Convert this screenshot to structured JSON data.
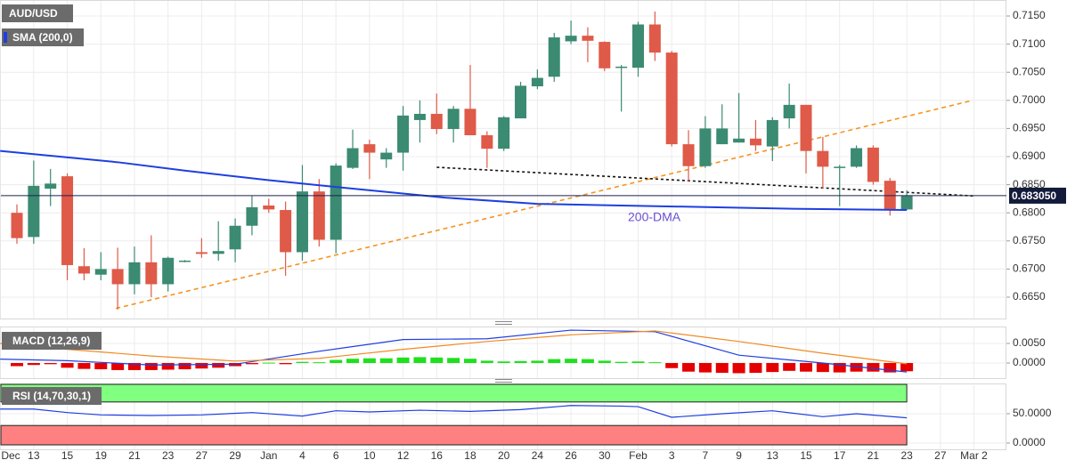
{
  "chart_data": [
    {
      "type": "candlestick",
      "title": "AUD/USD",
      "xlim": [
        -1.008,
        58.935
      ],
      "xticks": [
        {
          "value": -1,
          "label": "Dec"
        },
        {
          "value": 1,
          "label": "13"
        },
        {
          "value": 3,
          "label": "15"
        },
        {
          "value": 5,
          "label": "19"
        },
        {
          "value": 7,
          "label": "21"
        },
        {
          "value": 9,
          "label": "23"
        },
        {
          "value": 11,
          "label": "27"
        },
        {
          "value": 13,
          "label": "29"
        },
        {
          "value": 15,
          "label": "Jan"
        },
        {
          "value": 17,
          "label": "4"
        },
        {
          "value": 19,
          "label": "6"
        },
        {
          "value": 21,
          "label": "10"
        },
        {
          "value": 23,
          "label": "12"
        },
        {
          "value": 25,
          "label": "16"
        },
        {
          "value": 27,
          "label": "18"
        },
        {
          "value": 29,
          "label": "20"
        },
        {
          "value": 31,
          "label": "24"
        },
        {
          "value": 33,
          "label": "26"
        },
        {
          "value": 35,
          "label": "30"
        },
        {
          "value": 37,
          "label": "Feb"
        },
        {
          "value": 39,
          "label": "3"
        },
        {
          "value": 41,
          "label": "7"
        },
        {
          "value": 43,
          "label": "9"
        },
        {
          "value": 45,
          "label": "13"
        },
        {
          "value": 47,
          "label": "15"
        },
        {
          "value": 49,
          "label": "17"
        },
        {
          "value": 51,
          "label": "21"
        },
        {
          "value": 53,
          "label": "23"
        },
        {
          "value": 55,
          "label": "27"
        },
        {
          "value": 57,
          "label": "Mar 2"
        }
      ],
      "ylim": [
        0.6612,
        0.71785
      ],
      "yticks": [
        {
          "value": 0.665,
          "label": "0.6650"
        },
        {
          "value": 0.67,
          "label": "0.6700"
        },
        {
          "value": 0.675,
          "label": "0.6750"
        },
        {
          "value": 0.68,
          "label": "0.6800"
        },
        {
          "value": 0.685,
          "label": "0.6850"
        },
        {
          "value": 0.69,
          "label": "0.6900"
        },
        {
          "value": 0.695,
          "label": "0.6950"
        },
        {
          "value": 0.7,
          "label": "0.7000"
        },
        {
          "value": 0.705,
          "label": "0.7050"
        },
        {
          "value": 0.71,
          "label": "0.7100"
        },
        {
          "value": 0.715,
          "label": "0.7150"
        }
      ],
      "grid": true,
      "up_color": "#3b8a72",
      "down_color": "#df5a48",
      "open": [
        0.68,
        0.6757,
        0.6843,
        0.6865,
        0.6705,
        0.669,
        0.67,
        0.6673,
        0.6712,
        0.6673,
        0.6713,
        0.673,
        0.6727,
        0.6735,
        0.6777,
        0.6813,
        0.6805,
        0.673,
        0.6838,
        0.6752,
        0.688,
        0.6922,
        0.6895,
        0.6907,
        0.6965,
        0.6976,
        0.6949,
        0.6985,
        0.6938,
        0.6914,
        0.6968,
        0.7025,
        0.7042,
        0.7105,
        0.7115,
        0.7104,
        0.7058,
        0.7058,
        0.7135,
        0.7085,
        0.6922,
        0.6883,
        0.6922,
        0.6925,
        0.6932,
        0.6918,
        0.6968,
        0.6992,
        0.691,
        0.688,
        0.6882,
        0.6916,
        0.6857,
        0.6806
      ],
      "high": [
        0.6815,
        0.6893,
        0.6878,
        0.687,
        0.6737,
        0.673,
        0.6738,
        0.674,
        0.676,
        0.6722,
        0.6716,
        0.6755,
        0.6785,
        0.679,
        0.683,
        0.6825,
        0.682,
        0.6885,
        0.686,
        0.6888,
        0.6948,
        0.693,
        0.6915,
        0.699,
        0.7,
        0.7012,
        0.699,
        0.7063,
        0.6945,
        0.6972,
        0.7033,
        0.7055,
        0.712,
        0.7142,
        0.713,
        0.7105,
        0.7063,
        0.714,
        0.7158,
        0.7088,
        0.6947,
        0.6972,
        0.6993,
        0.7013,
        0.6965,
        0.697,
        0.703,
        0.6992,
        0.6935,
        0.6885,
        0.692,
        0.692,
        0.6862,
        0.684
      ],
      "low": [
        0.6745,
        0.6745,
        0.6812,
        0.668,
        0.668,
        0.668,
        0.6628,
        0.6655,
        0.665,
        0.666,
        0.6712,
        0.672,
        0.6715,
        0.6712,
        0.676,
        0.68,
        0.6688,
        0.6715,
        0.674,
        0.6728,
        0.6878,
        0.686,
        0.688,
        0.6875,
        0.6925,
        0.694,
        0.6925,
        0.6938,
        0.688,
        0.691,
        0.6968,
        0.702,
        0.7033,
        0.71,
        0.7068,
        0.7052,
        0.698,
        0.7042,
        0.707,
        0.6918,
        0.6855,
        0.688,
        0.6922,
        0.6925,
        0.691,
        0.6892,
        0.695,
        0.687,
        0.6843,
        0.6812,
        0.688,
        0.685,
        0.6795,
        0.6805
      ],
      "close": [
        0.6755,
        0.6848,
        0.6852,
        0.6707,
        0.6692,
        0.67,
        0.6673,
        0.6712,
        0.6673,
        0.672,
        0.6715,
        0.6727,
        0.6732,
        0.6777,
        0.681,
        0.6806,
        0.673,
        0.6838,
        0.6752,
        0.6884,
        0.6915,
        0.6907,
        0.6907,
        0.6973,
        0.6976,
        0.6949,
        0.6985,
        0.6938,
        0.6914,
        0.697,
        0.7026,
        0.704,
        0.7112,
        0.7115,
        0.7106,
        0.7057,
        0.706,
        0.7135,
        0.7085,
        0.6922,
        0.6883,
        0.695,
        0.695,
        0.6932,
        0.692,
        0.6965,
        0.6992,
        0.691,
        0.6882,
        0.6882,
        0.6915,
        0.6855,
        0.6805,
        0.683
      ],
      "series": [
        {
          "name": "SMA (200,0)",
          "color": "#1e3fe0",
          "x": [
            -1,
            6,
            10,
            15,
            20,
            25.5,
            31,
            36,
            41.4,
            46.7,
            53
          ],
          "values": [
            0.691,
            0.689,
            0.6875,
            0.6858,
            0.6843,
            0.6827,
            0.6816,
            0.6813,
            0.681,
            0.6807,
            0.6805
          ]
        }
      ],
      "trend_lines": [
        {
          "color": "#f7931e",
          "style": "dashed",
          "x": [
            5.9,
            56.8
          ],
          "values": [
            0.663,
            0.6999
          ]
        },
        {
          "color": "#111111",
          "style": "dotted",
          "x": [
            25,
            57
          ],
          "values": [
            0.6881,
            0.683
          ]
        }
      ],
      "annotation": "200-DMA",
      "last_price": {
        "value": 0.68305,
        "label": "0.683050"
      }
    },
    {
      "type": "macd",
      "title": "MACD (12,26,9)",
      "ylim": [
        -0.00386,
        0.00932
      ],
      "yticks": [
        {
          "value": 0,
          "label": "0.0000"
        },
        {
          "value": 0.005,
          "label": "0.0050"
        }
      ],
      "positive_color": "#1fe01f",
      "negative_color": "#e50000",
      "histogram": [
        -0.0008,
        -0.0005,
        -0.0003,
        -0.0012,
        -0.0015,
        -0.0016,
        -0.0018,
        -0.0018,
        -0.0018,
        -0.0017,
        -0.0016,
        -0.0014,
        -0.0012,
        -0.0008,
        -0.0003,
        0.0001,
        -0.0003,
        0.0003,
        0.0002,
        0.0008,
        0.0011,
        0.0012,
        0.0012,
        0.0014,
        0.0015,
        0.0014,
        0.0013,
        0.0011,
        0.0006,
        0.0004,
        0.0005,
        0.0006,
        0.001,
        0.0011,
        0.001,
        0.0006,
        0.0003,
        0.0004,
        0.0002,
        -0.0013,
        -0.0022,
        -0.0024,
        -0.0025,
        -0.0026,
        -0.0025,
        -0.0023,
        -0.002,
        -0.0022,
        -0.0023,
        -0.0024,
        -0.0022,
        -0.0022,
        -0.0024,
        -0.0021
      ],
      "series": [
        {
          "color": "#1e3fe0",
          "x": [
            -1,
            3,
            8,
            13,
            18,
            23,
            28,
            33,
            38,
            43,
            48,
            53
          ],
          "values": [
            0.001,
            0.0006,
            -0.0005,
            -0.0003,
            0.003,
            0.006,
            0.0062,
            0.0084,
            0.008,
            0.002,
            0.0,
            -0.0023
          ]
        },
        {
          "color": "#f08a24",
          "x": [
            -1,
            3,
            8,
            13,
            18,
            23,
            28,
            33,
            38,
            43,
            48,
            53
          ],
          "values": [
            0.005,
            0.0035,
            0.0018,
            0.0005,
            0.0012,
            0.0035,
            0.0055,
            0.0072,
            0.0082,
            0.0055,
            0.0025,
            -0.0002
          ]
        }
      ]
    },
    {
      "type": "rsi",
      "title": "RSI (14,70,30,1)",
      "ylim": [
        -10.6,
        100
      ],
      "yticks": [
        {
          "value": 0,
          "label": "0.0000"
        },
        {
          "value": 50,
          "label": "50.0000"
        }
      ],
      "overbought": 70,
      "oversold": 30,
      "overbought_color": "#80ff80",
      "oversold_color": "#ff8080",
      "series": [
        {
          "color": "#1e3fe0",
          "x": [
            -1,
            1,
            3,
            5,
            8,
            11,
            14,
            17,
            19,
            21,
            24,
            27,
            30,
            33,
            36,
            37,
            39,
            42,
            45,
            48,
            50,
            53
          ],
          "values": [
            58,
            58,
            52,
            48,
            47,
            48,
            52,
            46,
            55,
            53,
            56,
            54,
            57,
            64,
            63,
            62,
            44,
            50,
            55,
            45,
            50,
            43
          ]
        }
      ]
    }
  ]
}
